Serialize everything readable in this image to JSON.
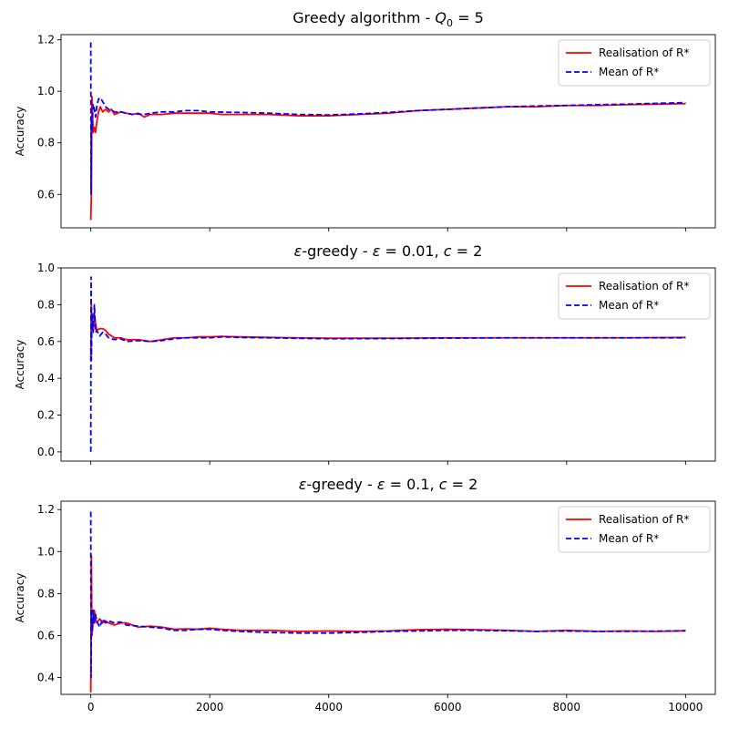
{
  "chart_data": [
    {
      "type": "line",
      "title": "Greedy algorithm - ",
      "title_math": {
        "var": "Q",
        "sub": "0",
        "rest": " = 5"
      },
      "ylabel": "Accuracy",
      "xlabel": "",
      "xlim": [
        -500,
        10500
      ],
      "ylim": [
        0.47,
        1.22
      ],
      "xticks": [
        0,
        2000,
        4000,
        6000,
        8000,
        10000
      ],
      "yticks": [
        0.6,
        0.8,
        1.0,
        1.2
      ],
      "ytick_labels": [
        "0.6",
        "0.8",
        "1.0",
        "1.2"
      ],
      "show_xtick_labels": false,
      "grid": false,
      "legend": "top-right",
      "series": [
        {
          "name": "Realisation of R*",
          "color": "#ff0000",
          "style": "solid",
          "points": [
            [
              0,
              0.5
            ],
            [
              10,
              0.6
            ],
            [
              20,
              0.98
            ],
            [
              40,
              0.84
            ],
            [
              60,
              0.86
            ],
            [
              80,
              0.84
            ],
            [
              100,
              0.88
            ],
            [
              130,
              0.92
            ],
            [
              160,
              0.94
            ],
            [
              200,
              0.92
            ],
            [
              250,
              0.93
            ],
            [
              300,
              0.92
            ],
            [
              350,
              0.93
            ],
            [
              400,
              0.91
            ],
            [
              500,
              0.92
            ],
            [
              600,
              0.915
            ],
            [
              700,
              0.91
            ],
            [
              800,
              0.915
            ],
            [
              900,
              0.9
            ],
            [
              1000,
              0.91
            ],
            [
              1200,
              0.91
            ],
            [
              1400,
              0.915
            ],
            [
              1600,
              0.915
            ],
            [
              1800,
              0.915
            ],
            [
              2000,
              0.915
            ],
            [
              2200,
              0.91
            ],
            [
              2500,
              0.91
            ],
            [
              3000,
              0.91
            ],
            [
              3500,
              0.905
            ],
            [
              4000,
              0.905
            ],
            [
              4500,
              0.91
            ],
            [
              5000,
              0.915
            ],
            [
              5500,
              0.925
            ],
            [
              6000,
              0.93
            ],
            [
              6500,
              0.935
            ],
            [
              7000,
              0.94
            ],
            [
              7500,
              0.94
            ],
            [
              8000,
              0.945
            ],
            [
              8500,
              0.945
            ],
            [
              9000,
              0.948
            ],
            [
              9500,
              0.95
            ],
            [
              10000,
              0.952
            ]
          ]
        },
        {
          "name": "Mean of R*",
          "color": "#0000ff",
          "style": "dashed",
          "points": [
            [
              0,
              1.19
            ],
            [
              5,
              0.6
            ],
            [
              10,
              0.9
            ],
            [
              20,
              0.85
            ],
            [
              40,
              0.95
            ],
            [
              60,
              0.93
            ],
            [
              80,
              0.9
            ],
            [
              100,
              0.94
            ],
            [
              130,
              0.97
            ],
            [
              160,
              0.975
            ],
            [
              200,
              0.96
            ],
            [
              250,
              0.94
            ],
            [
              300,
              0.93
            ],
            [
              350,
              0.925
            ],
            [
              400,
              0.92
            ],
            [
              500,
              0.92
            ],
            [
              600,
              0.915
            ],
            [
              700,
              0.91
            ],
            [
              800,
              0.912
            ],
            [
              900,
              0.91
            ],
            [
              1000,
              0.915
            ],
            [
              1200,
              0.92
            ],
            [
              1400,
              0.92
            ],
            [
              1600,
              0.925
            ],
            [
              1800,
              0.925
            ],
            [
              2000,
              0.92
            ],
            [
              2500,
              0.918
            ],
            [
              3000,
              0.915
            ],
            [
              3500,
              0.91
            ],
            [
              4000,
              0.908
            ],
            [
              4500,
              0.912
            ],
            [
              5000,
              0.918
            ],
            [
              5500,
              0.925
            ],
            [
              6000,
              0.93
            ],
            [
              6500,
              0.935
            ],
            [
              7000,
              0.94
            ],
            [
              7500,
              0.943
            ],
            [
              8000,
              0.945
            ],
            [
              8500,
              0.948
            ],
            [
              9000,
              0.95
            ],
            [
              9500,
              0.953
            ],
            [
              10000,
              0.956
            ]
          ]
        }
      ]
    },
    {
      "type": "line",
      "title": "-greedy - ",
      "title_math": {
        "prefix_symbol": "ε",
        "var": "ε",
        "rest": " = 0.01, ",
        "var2": "c",
        "rest2": " = 2"
      },
      "ylabel": "Accuracy",
      "xlabel": "",
      "xlim": [
        -500,
        10500
      ],
      "ylim": [
        -0.05,
        1.0
      ],
      "xticks": [
        0,
        2000,
        4000,
        6000,
        8000,
        10000
      ],
      "yticks": [
        0.0,
        0.2,
        0.4,
        0.6,
        0.8,
        1.0
      ],
      "ytick_labels": [
        "0.0",
        "0.2",
        "0.4",
        "0.6",
        "0.8",
        "1.0"
      ],
      "show_xtick_labels": false,
      "grid": false,
      "legend": "top-right",
      "series": [
        {
          "name": "Realisation of R*",
          "color": "#ff0000",
          "style": "solid",
          "points": [
            [
              0,
              0.5
            ],
            [
              10,
              0.8
            ],
            [
              20,
              0.7
            ],
            [
              40,
              0.66
            ],
            [
              60,
              0.75
            ],
            [
              80,
              0.7
            ],
            [
              100,
              0.66
            ],
            [
              150,
              0.67
            ],
            [
              200,
              0.67
            ],
            [
              250,
              0.66
            ],
            [
              300,
              0.64
            ],
            [
              400,
              0.62
            ],
            [
              500,
              0.62
            ],
            [
              600,
              0.61
            ],
            [
              800,
              0.61
            ],
            [
              1000,
              0.6
            ],
            [
              1200,
              0.61
            ],
            [
              1400,
              0.62
            ],
            [
              1600,
              0.62
            ],
            [
              1800,
              0.625
            ],
            [
              2000,
              0.625
            ],
            [
              2200,
              0.628
            ],
            [
              2500,
              0.625
            ],
            [
              3000,
              0.622
            ],
            [
              3500,
              0.62
            ],
            [
              4000,
              0.618
            ],
            [
              5000,
              0.618
            ],
            [
              6000,
              0.62
            ],
            [
              7000,
              0.62
            ],
            [
              8000,
              0.62
            ],
            [
              9000,
              0.62
            ],
            [
              10000,
              0.622
            ]
          ]
        },
        {
          "name": "Mean of R*",
          "color": "#0000ff",
          "style": "dashed",
          "points": [
            [
              0,
              0.0
            ],
            [
              5,
              0.95
            ],
            [
              10,
              0.5
            ],
            [
              20,
              0.75
            ],
            [
              40,
              0.65
            ],
            [
              60,
              0.8
            ],
            [
              80,
              0.65
            ],
            [
              100,
              0.66
            ],
            [
              150,
              0.63
            ],
            [
              200,
              0.65
            ],
            [
              250,
              0.64
            ],
            [
              300,
              0.62
            ],
            [
              400,
              0.61
            ],
            [
              500,
              0.615
            ],
            [
              600,
              0.6
            ],
            [
              800,
              0.605
            ],
            [
              1000,
              0.6
            ],
            [
              1200,
              0.605
            ],
            [
              1400,
              0.615
            ],
            [
              1600,
              0.62
            ],
            [
              1800,
              0.62
            ],
            [
              2000,
              0.62
            ],
            [
              2200,
              0.625
            ],
            [
              2500,
              0.622
            ],
            [
              3000,
              0.62
            ],
            [
              3500,
              0.617
            ],
            [
              4000,
              0.615
            ],
            [
              5000,
              0.616
            ],
            [
              6000,
              0.618
            ],
            [
              7000,
              0.62
            ],
            [
              8000,
              0.62
            ],
            [
              9000,
              0.62
            ],
            [
              10000,
              0.62
            ]
          ]
        }
      ]
    },
    {
      "type": "line",
      "title": "-greedy - ",
      "title_math": {
        "prefix_symbol": "ε",
        "var": "ε",
        "rest": " = 0.1, ",
        "var2": "c",
        "rest2": " = 2"
      },
      "ylabel": "Accuracy",
      "xlabel": "",
      "xlim": [
        -500,
        10500
      ],
      "ylim": [
        0.32,
        1.24
      ],
      "xticks": [
        0,
        2000,
        4000,
        6000,
        8000,
        10000
      ],
      "xtick_labels": [
        "0",
        "2000",
        "4000",
        "6000",
        "8000",
        "10000"
      ],
      "yticks": [
        0.4,
        0.6,
        0.8,
        1.0,
        1.2
      ],
      "ytick_labels": [
        "0.4",
        "0.6",
        "0.8",
        "1.0",
        "1.2"
      ],
      "show_xtick_labels": true,
      "grid": false,
      "legend": "top-right",
      "series": [
        {
          "name": "Realisation of R*",
          "color": "#ff0000",
          "style": "solid",
          "points": [
            [
              0,
              0.33
            ],
            [
              10,
              0.98
            ],
            [
              20,
              0.6
            ],
            [
              40,
              0.66
            ],
            [
              60,
              0.72
            ],
            [
              80,
              0.68
            ],
            [
              100,
              0.66
            ],
            [
              150,
              0.68
            ],
            [
              200,
              0.66
            ],
            [
              250,
              0.67
            ],
            [
              300,
              0.66
            ],
            [
              400,
              0.65
            ],
            [
              500,
              0.66
            ],
            [
              600,
              0.66
            ],
            [
              800,
              0.64
            ],
            [
              1000,
              0.645
            ],
            [
              1200,
              0.64
            ],
            [
              1400,
              0.63
            ],
            [
              1600,
              0.632
            ],
            [
              1800,
              0.63
            ],
            [
              2000,
              0.635
            ],
            [
              2200,
              0.63
            ],
            [
              2500,
              0.625
            ],
            [
              3000,
              0.625
            ],
            [
              3500,
              0.62
            ],
            [
              4000,
              0.622
            ],
            [
              4500,
              0.62
            ],
            [
              5000,
              0.622
            ],
            [
              5500,
              0.628
            ],
            [
              6000,
              0.63
            ],
            [
              6500,
              0.628
            ],
            [
              7000,
              0.625
            ],
            [
              7500,
              0.62
            ],
            [
              8000,
              0.625
            ],
            [
              8500,
              0.62
            ],
            [
              9000,
              0.622
            ],
            [
              9500,
              0.62
            ],
            [
              10000,
              0.623
            ]
          ]
        },
        {
          "name": "Mean of R*",
          "color": "#0000ff",
          "style": "dashed",
          "points": [
            [
              0,
              1.19
            ],
            [
              5,
              0.4
            ],
            [
              10,
              0.72
            ],
            [
              20,
              0.62
            ],
            [
              40,
              0.72
            ],
            [
              60,
              0.66
            ],
            [
              80,
              0.7
            ],
            [
              100,
              0.67
            ],
            [
              150,
              0.64
            ],
            [
              200,
              0.68
            ],
            [
              250,
              0.66
            ],
            [
              300,
              0.67
            ],
            [
              400,
              0.66
            ],
            [
              500,
              0.665
            ],
            [
              600,
              0.65
            ],
            [
              800,
              0.645
            ],
            [
              1000,
              0.64
            ],
            [
              1200,
              0.635
            ],
            [
              1400,
              0.625
            ],
            [
              1600,
              0.625
            ],
            [
              1800,
              0.63
            ],
            [
              2000,
              0.63
            ],
            [
              2200,
              0.625
            ],
            [
              2500,
              0.62
            ],
            [
              3000,
              0.615
            ],
            [
              3500,
              0.612
            ],
            [
              4000,
              0.612
            ],
            [
              4500,
              0.615
            ],
            [
              5000,
              0.62
            ],
            [
              5500,
              0.622
            ],
            [
              6000,
              0.625
            ],
            [
              6500,
              0.625
            ],
            [
              7000,
              0.623
            ],
            [
              7500,
              0.62
            ],
            [
              8000,
              0.622
            ],
            [
              8500,
              0.62
            ],
            [
              9000,
              0.62
            ],
            [
              9500,
              0.621
            ],
            [
              10000,
              0.623
            ]
          ]
        }
      ]
    }
  ]
}
